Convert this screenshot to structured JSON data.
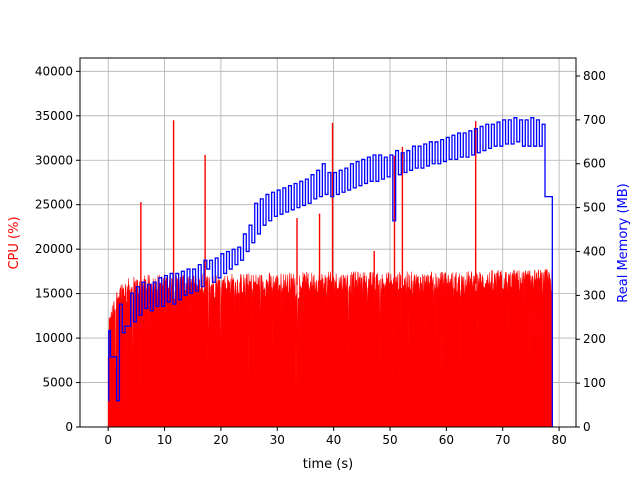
{
  "chart_data": {
    "type": "area",
    "title": "",
    "xlabel": "time (s)",
    "ylabel_left": "CPU (%)",
    "ylabel_right": "Real Memory (MB)",
    "xlim": [
      -5,
      83
    ],
    "ylim_left": [
      0,
      41500
    ],
    "ylim_right": [
      0,
      841
    ],
    "xticks": [
      0,
      10,
      20,
      30,
      40,
      50,
      60,
      70,
      80
    ],
    "yticks_left": [
      0,
      5000,
      10000,
      15000,
      20000,
      25000,
      30000,
      35000,
      40000
    ],
    "yticks_right": [
      0,
      100,
      200,
      300,
      400,
      500,
      600,
      700,
      800
    ],
    "grid": true,
    "colors": {
      "cpu": "#ff0000",
      "memory": "#0000ff",
      "grid": "#b0b0b0",
      "axis": "#000000"
    },
    "series": [
      {
        "axis": "left",
        "color": "#ff0000",
        "x_end": 78.8,
        "baseline": [
          [
            0,
            12000
          ],
          [
            2,
            16000
          ],
          [
            5,
            16500
          ],
          [
            10,
            16800
          ],
          [
            20,
            16800
          ],
          [
            30,
            16900
          ],
          [
            40,
            17000
          ],
          [
            50,
            17000
          ],
          [
            60,
            17000
          ],
          [
            70,
            17200
          ],
          [
            78.5,
            17300
          ]
        ],
        "spikes": [
          [
            5.8,
            25300
          ],
          [
            11.6,
            34500
          ],
          [
            17.2,
            30600
          ],
          [
            33.5,
            23500
          ],
          [
            37.5,
            24000
          ],
          [
            39.8,
            34200
          ],
          [
            47.2,
            19800
          ],
          [
            50.8,
            30500
          ],
          [
            52.2,
            31500
          ],
          [
            65.2,
            34400
          ]
        ]
      },
      {
        "axis": "right",
        "color": "#0000ff",
        "x_end": 78.8,
        "points": [
          [
            0,
            60
          ],
          [
            0.1,
            220
          ],
          [
            0.4,
            160
          ],
          [
            1,
            160
          ],
          [
            1.5,
            60
          ],
          [
            2,
            280
          ],
          [
            2.5,
            215
          ],
          [
            3,
            230
          ],
          [
            3.5,
            230
          ],
          [
            4,
            305
          ],
          [
            4.5,
            240
          ],
          [
            5,
            320
          ],
          [
            5.5,
            255
          ],
          [
            6,
            330
          ],
          [
            6.5,
            270
          ],
          [
            7,
            325
          ],
          [
            7.5,
            265
          ],
          [
            8,
            330
          ],
          [
            8.5,
            275
          ],
          [
            9,
            340
          ],
          [
            9.5,
            275
          ],
          [
            10,
            345
          ],
          [
            10.5,
            285
          ],
          [
            11,
            350
          ],
          [
            11.5,
            280
          ],
          [
            12,
            350
          ],
          [
            12.5,
            290
          ],
          [
            13,
            355
          ],
          [
            13.5,
            300
          ],
          [
            14,
            360
          ],
          [
            14.5,
            305
          ],
          [
            15,
            360
          ],
          [
            15.5,
            310
          ],
          [
            16,
            370
          ],
          [
            16.5,
            320
          ],
          [
            17,
            380
          ],
          [
            17.5,
            360
          ],
          [
            18,
            380
          ],
          [
            18.5,
            330
          ],
          [
            19,
            385
          ],
          [
            19.5,
            340
          ],
          [
            20,
            395
          ],
          [
            20.5,
            350
          ],
          [
            21,
            400
          ],
          [
            21.5,
            360
          ],
          [
            22,
            405
          ],
          [
            22.5,
            370
          ],
          [
            23,
            410
          ],
          [
            23.5,
            380
          ],
          [
            24,
            440
          ],
          [
            24.5,
            400
          ],
          [
            25,
            460
          ],
          [
            25.5,
            420
          ],
          [
            26,
            510
          ],
          [
            26.5,
            440
          ],
          [
            27,
            520
          ],
          [
            27.5,
            460
          ],
          [
            28,
            530
          ],
          [
            28.5,
            470
          ],
          [
            29,
            535
          ],
          [
            29.5,
            480
          ],
          [
            30,
            540
          ],
          [
            30.5,
            485
          ],
          [
            31,
            545
          ],
          [
            31.5,
            490
          ],
          [
            32,
            550
          ],
          [
            32.5,
            495
          ],
          [
            33,
            555
          ],
          [
            33.5,
            500
          ],
          [
            34,
            560
          ],
          [
            34.5,
            505
          ],
          [
            35,
            565
          ],
          [
            35.5,
            510
          ],
          [
            36,
            575
          ],
          [
            36.5,
            520
          ],
          [
            37,
            585
          ],
          [
            37.5,
            525
          ],
          [
            38,
            600
          ],
          [
            38.5,
            530
          ],
          [
            39,
            580
          ],
          [
            39.5,
            525
          ],
          [
            40,
            580
          ],
          [
            40.5,
            530
          ],
          [
            41,
            585
          ],
          [
            41.5,
            535
          ],
          [
            42,
            590
          ],
          [
            42.5,
            540
          ],
          [
            43,
            600
          ],
          [
            43.5,
            545
          ],
          [
            44,
            605
          ],
          [
            44.5,
            550
          ],
          [
            45,
            610
          ],
          [
            45.5,
            555
          ],
          [
            46,
            615
          ],
          [
            46.5,
            560
          ],
          [
            47,
            620
          ],
          [
            47.5,
            560
          ],
          [
            48,
            620
          ],
          [
            48.5,
            565
          ],
          [
            49,
            615
          ],
          [
            49.5,
            570
          ],
          [
            50,
            620
          ],
          [
            50.5,
            470
          ],
          [
            51,
            630
          ],
          [
            51.5,
            575
          ],
          [
            52,
            625
          ],
          [
            52.5,
            580
          ],
          [
            53,
            630
          ],
          [
            53.5,
            585
          ],
          [
            54,
            640
          ],
          [
            54.5,
            590
          ],
          [
            55,
            640
          ],
          [
            55.5,
            590
          ],
          [
            56,
            645
          ],
          [
            56.5,
            595
          ],
          [
            57,
            650
          ],
          [
            57.5,
            600
          ],
          [
            58,
            650
          ],
          [
            58.5,
            600
          ],
          [
            59,
            655
          ],
          [
            59.5,
            605
          ],
          [
            60,
            660
          ],
          [
            60.5,
            610
          ],
          [
            61,
            665
          ],
          [
            61.5,
            610
          ],
          [
            62,
            670
          ],
          [
            62.5,
            615
          ],
          [
            63,
            670
          ],
          [
            63.5,
            615
          ],
          [
            64,
            675
          ],
          [
            64.5,
            620
          ],
          [
            65,
            680
          ],
          [
            65.5,
            625
          ],
          [
            66,
            685
          ],
          [
            66.5,
            630
          ],
          [
            67,
            690
          ],
          [
            67.5,
            635
          ],
          [
            68,
            690
          ],
          [
            68.5,
            640
          ],
          [
            69,
            695
          ],
          [
            69.5,
            640
          ],
          [
            70,
            700
          ],
          [
            70.5,
            645
          ],
          [
            71,
            700
          ],
          [
            71.5,
            645
          ],
          [
            72,
            705
          ],
          [
            72.5,
            650
          ],
          [
            73,
            700
          ],
          [
            73.5,
            640
          ],
          [
            74,
            700
          ],
          [
            74.5,
            640
          ],
          [
            75,
            705
          ],
          [
            75.5,
            640
          ],
          [
            76,
            700
          ],
          [
            76.5,
            640
          ],
          [
            77,
            690
          ],
          [
            77.5,
            525
          ],
          [
            78.5,
            525
          ],
          [
            78.8,
            0
          ]
        ]
      }
    ]
  }
}
